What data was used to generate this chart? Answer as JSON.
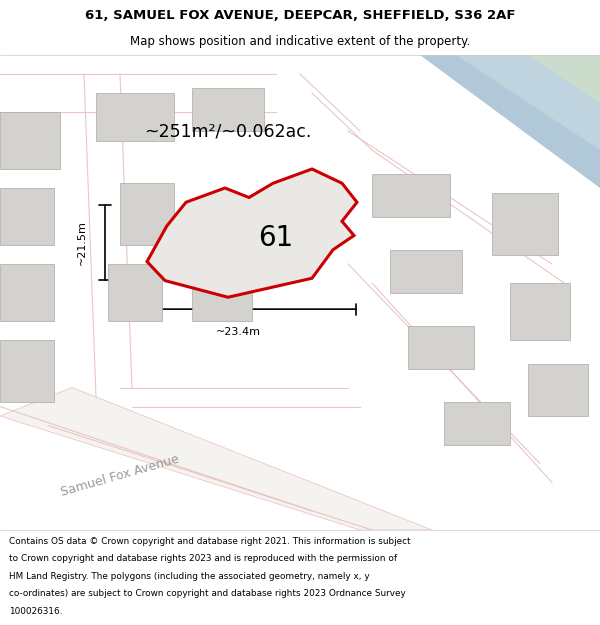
{
  "title_line1": "61, SAMUEL FOX AVENUE, DEEPCAR, SHEFFIELD, S36 2AF",
  "title_line2": "Map shows position and indicative extent of the property.",
  "footer_lines": [
    "Contains OS data © Crown copyright and database right 2021. This information is subject",
    "to Crown copyright and database rights 2023 and is reproduced with the permission of",
    "HM Land Registry. The polygons (including the associated geometry, namely x, y",
    "co-ordinates) are subject to Crown copyright and database rights 2023 Ordnance Survey",
    "100026316."
  ],
  "area_label": "~251m²/~0.062ac.",
  "number_label": "61",
  "dim_horizontal": "~23.4m",
  "dim_vertical": "~21.5m",
  "street_label": "Samuel Fox Avenue",
  "bg_color": "#f0eeeb",
  "building_fill": "#d4d2ce",
  "building_stroke": "#aaa8a4",
  "plot_fill": "#eae8e4",
  "plot_stroke": "#cc0000",
  "road_outline_color": "#e8c0c0",
  "blue_area_fill": "#c0d4e0",
  "blue_area_fill2": "#b0c8d8",
  "green_area_fill": "#ccdccc",
  "header_bg": "#ffffff",
  "footer_bg": "#ffffff",
  "sep_color": "#cccccc",
  "street_color": "#999999",
  "dim_color": "#000000",
  "text_color": "#000000"
}
